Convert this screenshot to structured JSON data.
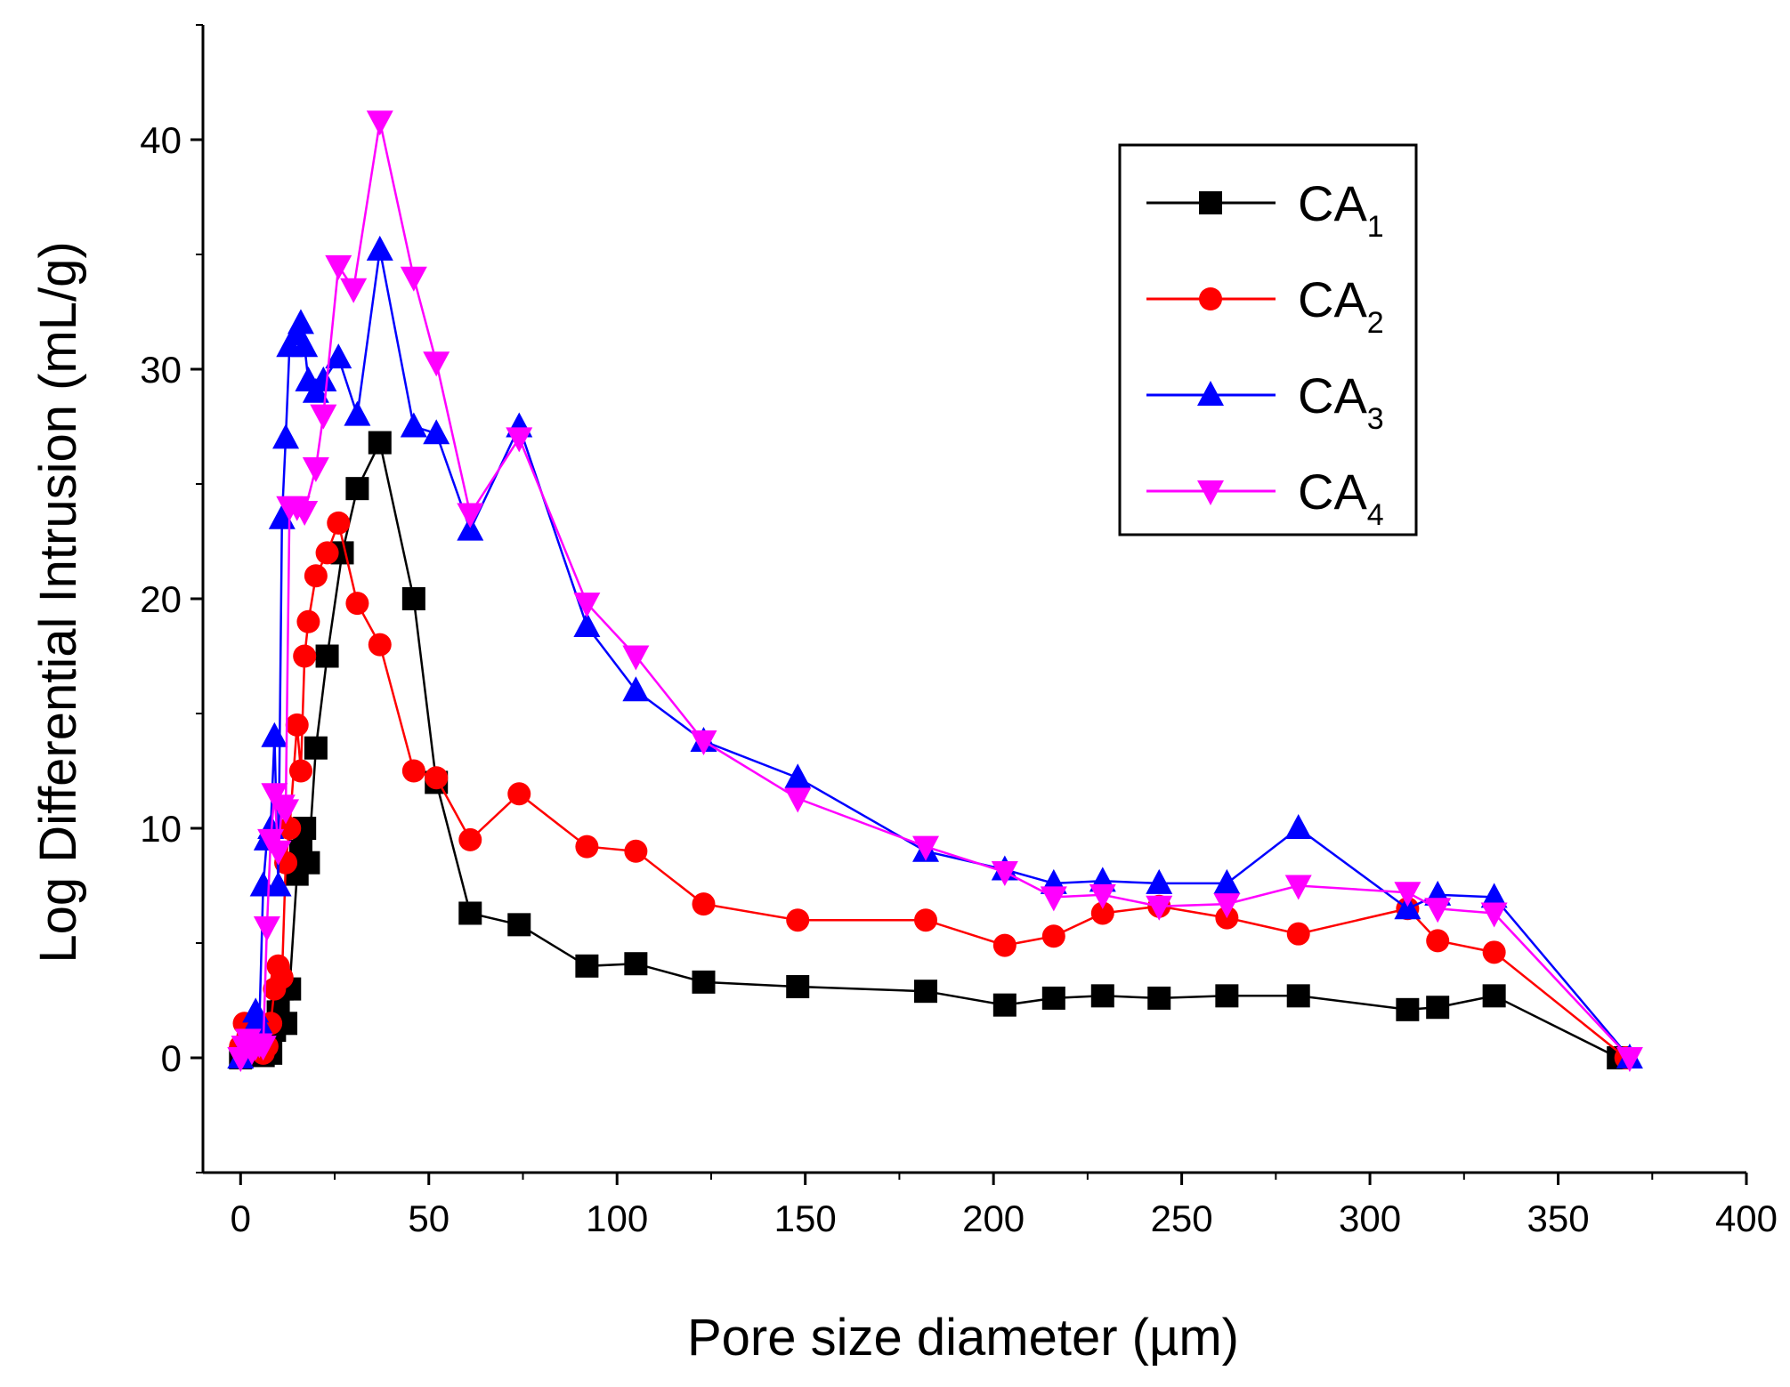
{
  "chart_data": {
    "type": "line",
    "title": "",
    "xlabel": "Pore size diameter (µm)",
    "ylabel": "Log Differential Intrusion (mL/g)",
    "xlim": [
      -10,
      400
    ],
    "ylim": [
      -5,
      45
    ],
    "xticks": [
      "0",
      "50",
      "100",
      "150",
      "200",
      "250",
      "300",
      "350",
      "400"
    ],
    "yticks": [
      "0",
      "10",
      "20",
      "30",
      "40"
    ],
    "legend_position": "top-right",
    "series": [
      {
        "name": "CA1",
        "base": "CA",
        "sub": "1",
        "color": "#000000",
        "marker": "square",
        "x": [
          0,
          1,
          2,
          3,
          4,
          5,
          6,
          7,
          8,
          9,
          10,
          11,
          12,
          13,
          15,
          16,
          17,
          18,
          20,
          23,
          27,
          31,
          37,
          46,
          52,
          61,
          74,
          92,
          105,
          123,
          148,
          182,
          203,
          216,
          229,
          244,
          262,
          281,
          310,
          318,
          333,
          366
        ],
        "y": [
          0,
          0.2,
          0.5,
          0.3,
          0.2,
          0.3,
          0.1,
          0.4,
          0.2,
          1.2,
          2.0,
          3.0,
          1.5,
          3.0,
          8.0,
          9.0,
          10.0,
          8.5,
          13.5,
          17.5,
          22.0,
          24.8,
          26.8,
          20.0,
          12.0,
          6.3,
          5.8,
          4.0,
          4.1,
          3.3,
          3.1,
          2.9,
          2.3,
          2.6,
          2.7,
          2.6,
          2.7,
          2.7,
          2.1,
          2.2,
          2.7,
          0
        ]
      },
      {
        "name": "CA2",
        "base": "CA",
        "sub": "2",
        "color": "#ff0000",
        "marker": "circle",
        "x": [
          0,
          1,
          2,
          3,
          4,
          5,
          6,
          7,
          8,
          9,
          10,
          11,
          12,
          13,
          15,
          16,
          17,
          18,
          20,
          23,
          26,
          31,
          37,
          46,
          52,
          61,
          74,
          92,
          105,
          123,
          148,
          182,
          203,
          216,
          229,
          244,
          262,
          281,
          310,
          318,
          333,
          368
        ],
        "y": [
          0.5,
          1.5,
          1.0,
          0.8,
          0.6,
          0.4,
          0.2,
          0.5,
          1.5,
          3.0,
          4.0,
          3.5,
          8.5,
          10.0,
          14.5,
          12.5,
          17.5,
          19.0,
          21.0,
          22.0,
          23.3,
          19.8,
          18.0,
          12.5,
          12.2,
          9.5,
          11.5,
          9.2,
          9.0,
          6.7,
          6.0,
          6.0,
          4.9,
          5.3,
          6.3,
          6.6,
          6.1,
          5.4,
          6.5,
          5.1,
          4.6,
          0
        ]
      },
      {
        "name": "CA3",
        "base": "CA",
        "sub": "3",
        "color": "#0000ff",
        "marker": "triangle-up",
        "x": [
          0,
          2,
          3,
          4,
          5,
          6,
          7,
          8,
          9,
          10,
          11,
          12,
          13,
          15,
          16,
          17,
          18,
          20,
          22,
          26,
          31,
          37,
          46,
          52,
          61,
          74,
          92,
          105,
          123,
          148,
          182,
          203,
          216,
          229,
          244,
          262,
          281,
          310,
          318,
          333,
          369
        ],
        "y": [
          0,
          0.8,
          1.2,
          2.0,
          1.5,
          7.5,
          9.5,
          10.0,
          14.0,
          7.5,
          23.5,
          27.0,
          31.0,
          31.5,
          32.0,
          31.0,
          29.5,
          29.0,
          29.5,
          30.5,
          28.0,
          35.2,
          27.5,
          27.2,
          23.0,
          27.5,
          18.8,
          16.0,
          13.8,
          12.2,
          9.0,
          8.2,
          7.6,
          7.7,
          7.6,
          7.6,
          10.0,
          6.5,
          7.1,
          7.0,
          0
        ]
      },
      {
        "name": "CA4",
        "base": "CA",
        "sub": "4",
        "color": "#ff00ff",
        "marker": "triangle-down",
        "x": [
          0,
          1,
          2,
          3,
          4,
          5,
          6,
          7,
          8,
          9,
          10,
          11,
          12,
          13,
          15,
          17,
          20,
          22,
          26,
          30,
          37,
          46,
          52,
          61,
          74,
          92,
          105,
          123,
          148,
          182,
          203,
          216,
          229,
          244,
          262,
          281,
          310,
          318,
          333,
          369
        ],
        "y": [
          0,
          0.5,
          0.8,
          0.3,
          0.5,
          0.6,
          0.5,
          5.7,
          9.5,
          11.5,
          9.0,
          11.0,
          10.8,
          24.0,
          24.0,
          23.8,
          25.7,
          28.0,
          34.5,
          33.5,
          40.8,
          34.0,
          30.3,
          23.7,
          27.0,
          19.8,
          17.5,
          13.8,
          11.3,
          9.2,
          8.1,
          7.0,
          7.1,
          6.6,
          6.7,
          7.5,
          7.2,
          6.5,
          6.3,
          0
        ]
      }
    ]
  }
}
